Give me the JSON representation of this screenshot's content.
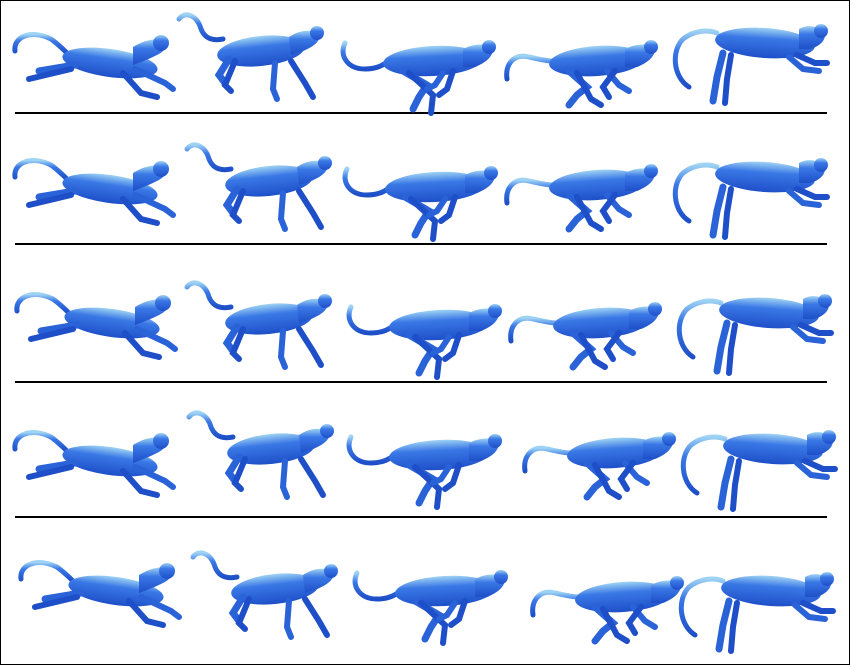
{
  "figure": {
    "rows": 5,
    "columns": 5,
    "subject": "cheetah-model",
    "pose_sequence": [
      "extended-leap",
      "gathered-stride",
      "crouch-stride",
      "crossed-legs-stride",
      "reach-forward"
    ],
    "colors": {
      "body_dark": "#1e4fc8",
      "body_mid": "#3a78e6",
      "body_light": "#9fd3f3",
      "separator": "#000000",
      "background": "#ffffff"
    }
  }
}
